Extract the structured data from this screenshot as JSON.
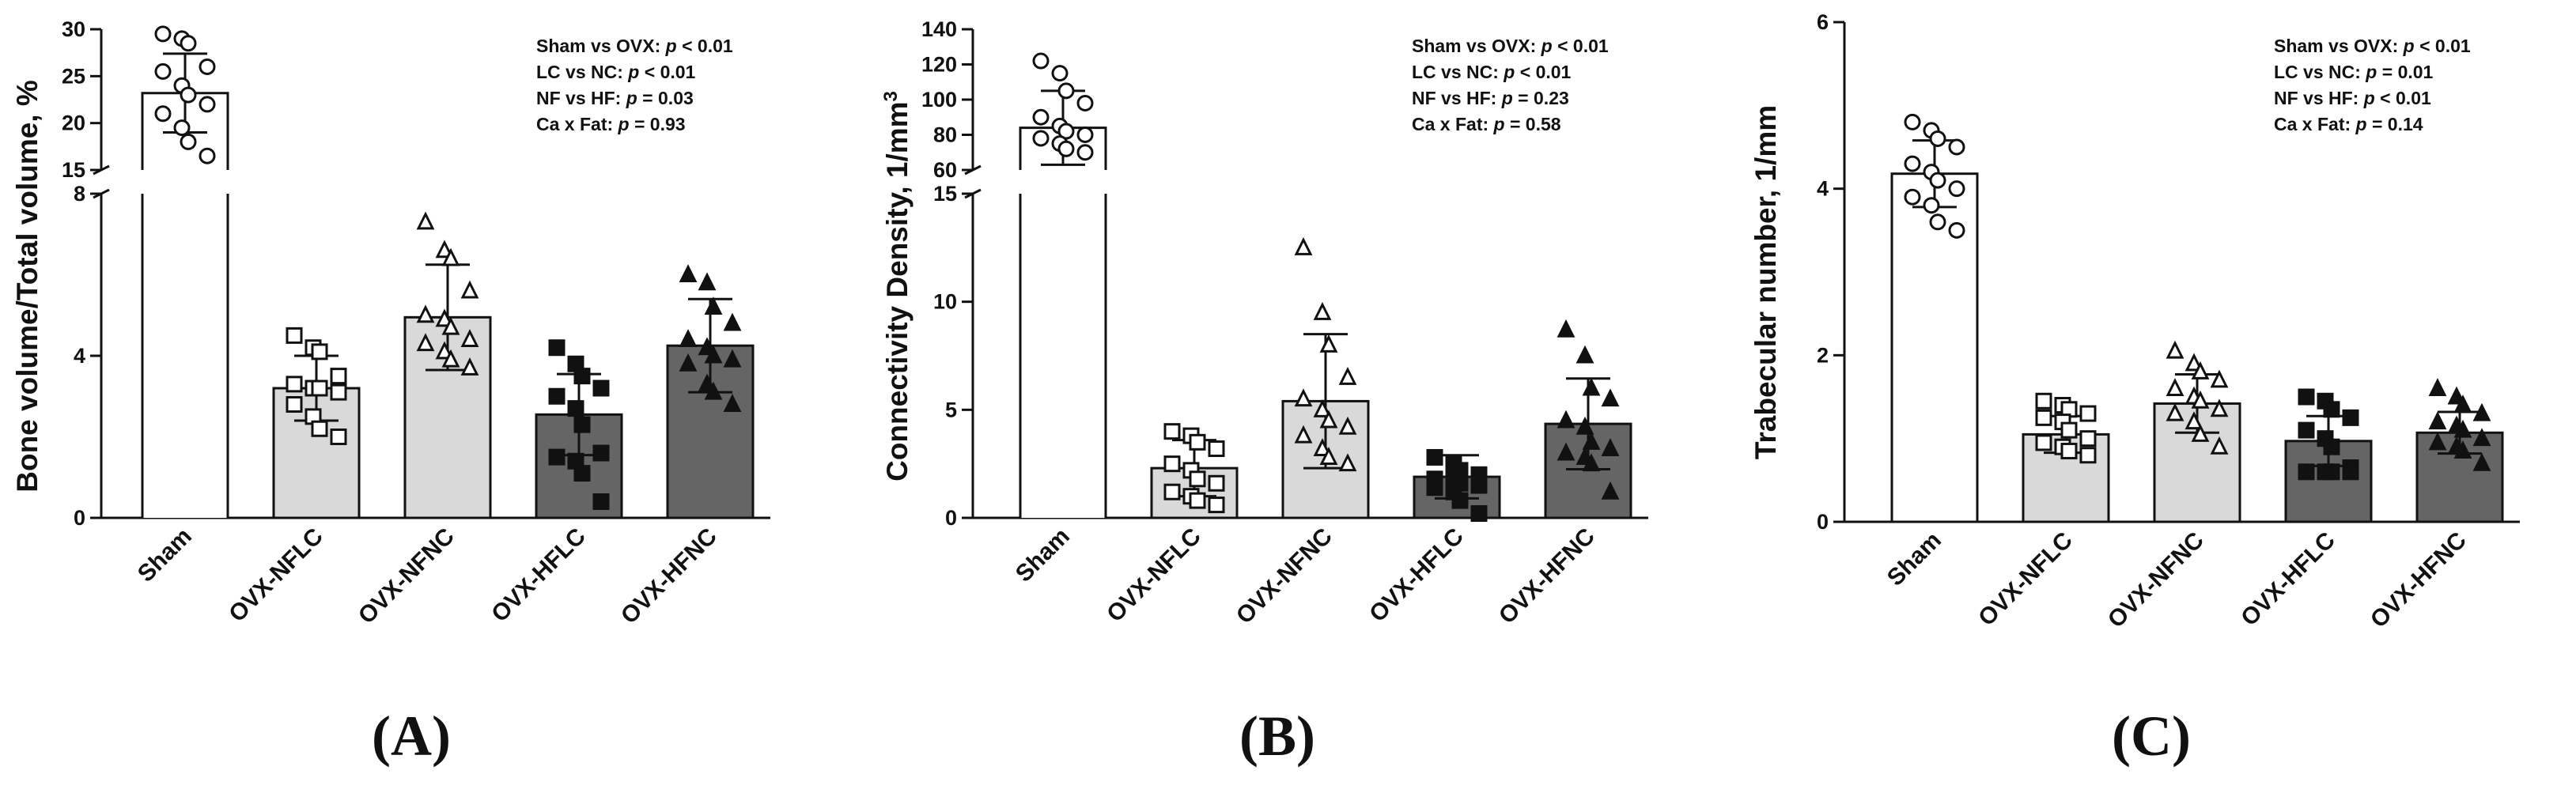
{
  "chart_data": [
    {
      "type": "bar",
      "panel_label": "(A)",
      "ylabel": "Bone volume/Total volume, %",
      "broken_axis": true,
      "ylim_lower": [
        0,
        8
      ],
      "ylim_upper": [
        15,
        30
      ],
      "yticks_lower": [
        "0",
        "4",
        "8"
      ],
      "yticks_upper": [
        "15",
        "20",
        "25",
        "30"
      ],
      "categories": [
        "Sham",
        "OVX-NFLC",
        "OVX-NFNC",
        "OVX-HFLC",
        "OVX-HFNC"
      ],
      "values": [
        23.2,
        3.2,
        4.95,
        2.55,
        4.25
      ],
      "sd": [
        4.2,
        0.8,
        1.3,
        1.0,
        1.15
      ],
      "points": [
        [
          29.5,
          29.0,
          28.5,
          26.0,
          25.5,
          24.0,
          23.0,
          22.0,
          21.0,
          19.5,
          18.0,
          16.5
        ],
        [
          4.5,
          4.2,
          4.1,
          3.5,
          3.3,
          3.2,
          3.2,
          3.1,
          2.8,
          2.5,
          2.2,
          2.0
        ],
        [
          7.3,
          6.6,
          6.4,
          5.6,
          5.0,
          4.9,
          4.7,
          4.4,
          4.3,
          4.1,
          3.9,
          3.7
        ],
        [
          4.2,
          3.8,
          3.5,
          3.2,
          3.0,
          2.7,
          2.3,
          1.6,
          1.5,
          1.4,
          1.1,
          0.4
        ],
        [
          6.0,
          5.8,
          5.2,
          4.8,
          4.4,
          4.2,
          4.0,
          3.9,
          3.8,
          3.3,
          3.1,
          2.8
        ]
      ],
      "marker": [
        "circle-open",
        "square-open",
        "triangle-open",
        "square-filled",
        "triangle-filled"
      ],
      "bar_fill": [
        "#ffffff",
        "#d9d9d9",
        "#d9d9d9",
        "#656565",
        "#656565"
      ],
      "stats": [
        {
          "label": "Sham vs OVX: ",
          "p": "p",
          "value": " < 0.01"
        },
        {
          "label": "LC vs NC: ",
          "p": "p",
          "value": " < 0.01"
        },
        {
          "label": "NF vs HF: ",
          "p": "p",
          "value": " = 0.03"
        },
        {
          "label": "Ca x Fat: ",
          "p": "p",
          "value": " = 0.93"
        }
      ]
    },
    {
      "type": "bar",
      "panel_label": "(B)",
      "ylabel": "Connectivity Density, 1/mm",
      "ylabel_sup": "3",
      "broken_axis": true,
      "ylim_lower": [
        0,
        15
      ],
      "ylim_upper": [
        60,
        140
      ],
      "yticks_lower": [
        "0",
        "5",
        "10",
        "15"
      ],
      "yticks_upper": [
        "60",
        "80",
        "100",
        "120",
        "140"
      ],
      "categories": [
        "Sham",
        "OVX-NFLC",
        "OVX-NFNC",
        "OVX-HFLC",
        "OVX-HFNC"
      ],
      "values": [
        84,
        2.3,
        5.4,
        1.9,
        4.35
      ],
      "sd": [
        21,
        1.3,
        3.1,
        1.0,
        2.1
      ],
      "points": [
        [
          122,
          115,
          105,
          98,
          90,
          85,
          82,
          80,
          78,
          75,
          72,
          70
        ],
        [
          4.0,
          3.8,
          3.5,
          3.2,
          2.5,
          2.2,
          1.8,
          1.6,
          1.2,
          1.0,
          0.8,
          0.6
        ],
        [
          12.5,
          9.5,
          8.0,
          6.5,
          5.5,
          5.0,
          4.5,
          4.2,
          3.8,
          3.2,
          2.8,
          2.5
        ],
        [
          2.8,
          2.5,
          2.2,
          2.0,
          1.8,
          1.8,
          1.6,
          1.5,
          1.4,
          1.2,
          0.8,
          0.2
        ],
        [
          8.7,
          7.5,
          6.0,
          5.5,
          4.5,
          4.2,
          3.5,
          3.2,
          3.0,
          2.8,
          2.5,
          1.2
        ]
      ],
      "marker": [
        "circle-open",
        "square-open",
        "triangle-open",
        "square-filled",
        "triangle-filled"
      ],
      "bar_fill": [
        "#ffffff",
        "#d9d9d9",
        "#d9d9d9",
        "#656565",
        "#656565"
      ],
      "stats": [
        {
          "label": "Sham vs OVX: ",
          "p": "p",
          "value": " < 0.01"
        },
        {
          "label": "LC vs NC: ",
          "p": "p",
          "value": " < 0.01"
        },
        {
          "label": "NF vs HF: ",
          "p": "p",
          "value": " = 0.23"
        },
        {
          "label": "Ca x Fat: ",
          "p": "p",
          "value": " = 0.58"
        }
      ]
    },
    {
      "type": "bar",
      "panel_label": "(C)",
      "ylabel": "Trabecular number, 1/mm",
      "broken_axis": false,
      "ylim": [
        0,
        6
      ],
      "yticks": [
        "0",
        "2",
        "4",
        "6"
      ],
      "categories": [
        "Sham",
        "OVX-NFLC",
        "OVX-NFNC",
        "OVX-HFLC",
        "OVX-HFNC"
      ],
      "values": [
        4.18,
        1.05,
        1.42,
        0.97,
        1.07
      ],
      "sd": [
        0.4,
        0.22,
        0.35,
        0.3,
        0.25
      ],
      "points": [
        [
          4.8,
          4.7,
          4.6,
          4.5,
          4.3,
          4.2,
          4.1,
          4.0,
          3.9,
          3.8,
          3.6,
          3.5
        ],
        [
          1.45,
          1.4,
          1.35,
          1.3,
          1.25,
          1.2,
          1.1,
          1.0,
          0.95,
          0.9,
          0.85,
          0.8
        ],
        [
          2.05,
          1.9,
          1.8,
          1.7,
          1.6,
          1.5,
          1.45,
          1.35,
          1.3,
          1.2,
          1.05,
          0.9
        ],
        [
          1.5,
          1.45,
          1.35,
          1.25,
          1.1,
          1.0,
          0.9,
          0.65,
          0.6,
          0.6,
          0.6,
          0.6
        ],
        [
          1.6,
          1.5,
          1.4,
          1.3,
          1.2,
          1.15,
          1.1,
          1.0,
          0.95,
          0.9,
          0.85,
          0.7
        ]
      ],
      "marker": [
        "circle-open",
        "square-open",
        "triangle-open",
        "square-filled",
        "triangle-filled"
      ],
      "bar_fill": [
        "#ffffff",
        "#d9d9d9",
        "#d9d9d9",
        "#656565",
        "#656565"
      ],
      "stats": [
        {
          "label": "Sham vs OVX: ",
          "p": "p",
          "value": " < 0.01"
        },
        {
          "label": "LC vs NC: ",
          "p": "p",
          "value": " = 0.01"
        },
        {
          "label": "NF vs HF: ",
          "p": "p",
          "value": " < 0.01"
        },
        {
          "label": "Ca x Fat: ",
          "p": "p",
          "value": " = 0.14"
        }
      ]
    }
  ]
}
